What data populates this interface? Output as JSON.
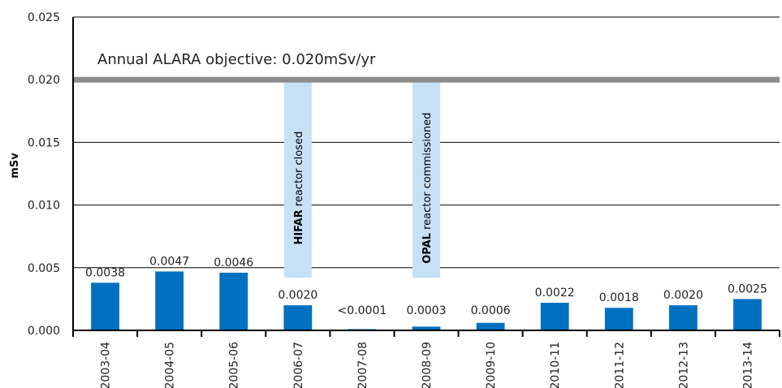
{
  "chart_data": {
    "type": "bar",
    "title": "",
    "xlabel": "",
    "ylabel": "mSv",
    "ylim": [
      0,
      0.025
    ],
    "yticks": [
      "0.000",
      "0.005",
      "0.010",
      "0.015",
      "0.020",
      "0.025"
    ],
    "grid": true,
    "categories": [
      "2003-04",
      "2004-05",
      "2005-06",
      "2006-07",
      "2007-08",
      "2008-09",
      "2009-10",
      "2010-11",
      "2011-12",
      "2012-13",
      "2013-14"
    ],
    "values": [
      0.0038,
      0.0047,
      0.0046,
      0.002,
      0.0001,
      0.0003,
      0.0006,
      0.0022,
      0.0018,
      0.002,
      0.0025
    ],
    "data_labels": [
      "0.0038",
      "0.0047",
      "0.0046",
      "0.0020",
      "<0.0001",
      "0.0003",
      "0.0006",
      "0.0022",
      "0.0018",
      "0.0020",
      "0.0025"
    ],
    "bar_color": "#0070c0",
    "objective": {
      "value": 0.02,
      "label": "Annual ALARA objective: 0.020mSv/yr",
      "color": "#8c8c8c"
    },
    "events": [
      {
        "category": "2006-07",
        "bold": "HIFAR",
        "text": " reactor closed",
        "color": "#c6e0f5"
      },
      {
        "category": "2008-09",
        "bold": "OPAL",
        "text": " reactor commissioned",
        "color": "#c6e0f5"
      }
    ]
  }
}
